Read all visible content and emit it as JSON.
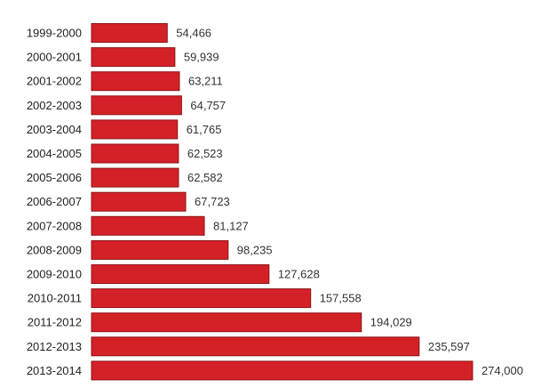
{
  "colors": {
    "bar_fill": "#d42127",
    "bar_stroke": "#8e1418",
    "label_text": "#222222",
    "value_text": "#333333",
    "background": "#ffffff"
  },
  "chart_data": {
    "type": "bar",
    "orientation": "horizontal",
    "title": "",
    "xlabel": "",
    "ylabel": "",
    "grid": false,
    "legend": "none",
    "xlim": [
      0,
      274000
    ],
    "categories": [
      "1999-2000",
      "2000-2001",
      "2001-2002",
      "2002-2003",
      "2003-2004",
      "2004-2005",
      "2005-2006",
      "2006-2007",
      "2007-2008",
      "2008-2009",
      "2009-2010",
      "2010-2011",
      "2011-2012",
      "2012-2013",
      "2013-2014"
    ],
    "values": [
      54466,
      59939,
      63211,
      64757,
      61765,
      62523,
      62582,
      67723,
      81127,
      98235,
      127628,
      157558,
      194029,
      235597,
      274000
    ],
    "value_labels": [
      "54,466",
      "59,939",
      "63,211",
      "64,757",
      "61,765",
      "62,523",
      "62,582",
      "67,723",
      "81,127",
      "98,235",
      "127,628",
      "157,558",
      "194,029",
      "235,597",
      "274,000"
    ]
  }
}
